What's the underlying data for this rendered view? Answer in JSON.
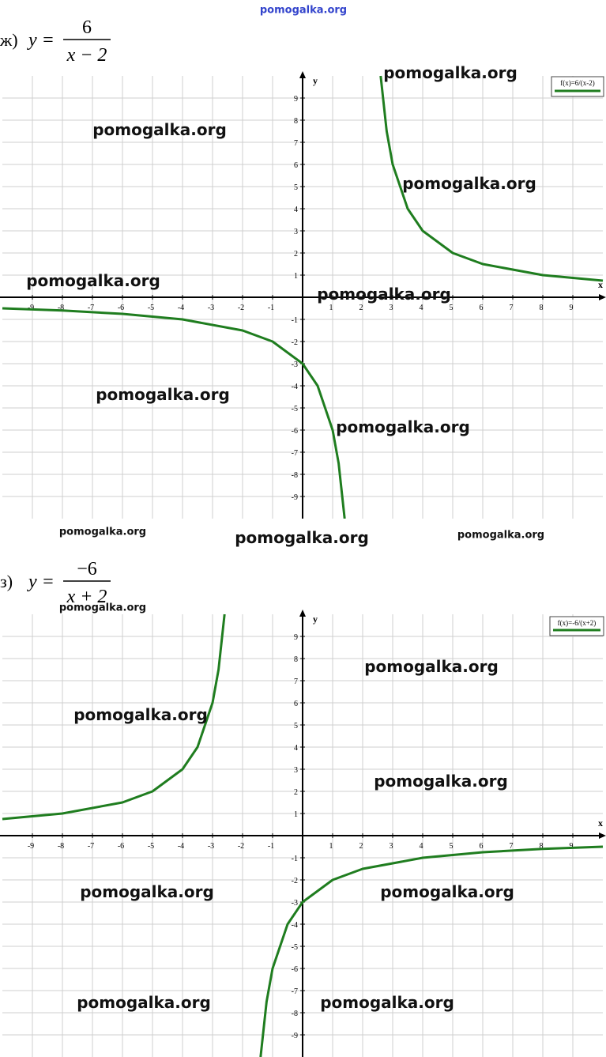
{
  "chart_data": [
    {
      "type": "line",
      "title_prefix": "ж)",
      "formula_lhs": "y =",
      "numerator": "6",
      "denominator": "x − 2",
      "x_label": "x",
      "y_label": "y",
      "x": [
        -10,
        -8,
        -6,
        -4,
        -2,
        -1,
        0,
        0.5,
        1,
        1.2,
        1.4,
        2,
        2.6,
        2.8,
        3,
        3.5,
        4,
        5,
        6,
        8,
        10
      ],
      "series": [
        {
          "name": "f(x)=6/(x-2)",
          "color": "#1f7d1f",
          "values": [
            -0.5,
            -0.6,
            -0.75,
            -1,
            -1.5,
            -2,
            -3,
            -4,
            -6,
            -7.5,
            -10,
            null,
            10,
            7.5,
            6,
            4,
            3,
            2,
            1.5,
            1,
            0.75
          ]
        }
      ],
      "xlim": [
        -10,
        10
      ],
      "ylim": [
        -10,
        10
      ],
      "xticks": [
        -9,
        -8,
        -7,
        -6,
        -5,
        -4,
        -3,
        -2,
        -1,
        1,
        2,
        3,
        4,
        5,
        6,
        7,
        8,
        9
      ],
      "yticks": [
        -9,
        -8,
        -7,
        -6,
        -5,
        -4,
        -3,
        -2,
        -1,
        1,
        2,
        3,
        4,
        5,
        6,
        7,
        8,
        9
      ],
      "grid": true,
      "legend": "top-right"
    },
    {
      "type": "line",
      "title_prefix": "з)",
      "formula_lhs": "y =",
      "numerator": "−6",
      "denominator": "x + 2",
      "x_label": "x",
      "y_label": "y",
      "x": [
        -10,
        -8,
        -6,
        -5,
        -4,
        -3.5,
        -3,
        -2.8,
        -2.6,
        -2,
        -1.4,
        -1.2,
        -1,
        -0.5,
        0,
        1,
        2,
        4,
        6,
        8,
        10
      ],
      "series": [
        {
          "name": "f(x)=-6/(x+2)",
          "color": "#1f7d1f",
          "values": [
            0.75,
            1,
            1.5,
            2,
            3,
            4,
            6,
            7.5,
            10,
            null,
            -10,
            -7.5,
            -6,
            -4,
            -3,
            -2,
            -1.5,
            -1,
            -0.75,
            -0.6,
            -0.5
          ]
        }
      ],
      "xlim": [
        -10,
        10
      ],
      "ylim": [
        -10,
        10
      ],
      "xticks": [
        -9,
        -8,
        -7,
        -6,
        -5,
        -4,
        -3,
        -2,
        -1,
        1,
        2,
        3,
        4,
        5,
        6,
        7,
        8,
        9
      ],
      "yticks": [
        -9,
        -8,
        -7,
        -6,
        -5,
        -4,
        -3,
        -2,
        -1,
        1,
        2,
        3,
        4,
        5,
        6,
        7,
        8,
        9
      ],
      "grid": true,
      "legend": "top-right"
    }
  ],
  "watermarks": [
    "pomogalka.org",
    "pomogalka.org",
    "pomogalka.org",
    "pomogalka.org",
    "pomogalka.org",
    "pomogalka.org",
    "pomogalka.org",
    "pomogalka.org",
    "pomogalka.org",
    "pomogalka.org",
    "pomogalka.org",
    "pomogalka.org",
    "pomogalka.org",
    "pomogalka.org",
    "pomogalka.org",
    "pomogalka.org",
    "pomogalka.org",
    "pomogalka.org",
    "pomogalka.org"
  ]
}
